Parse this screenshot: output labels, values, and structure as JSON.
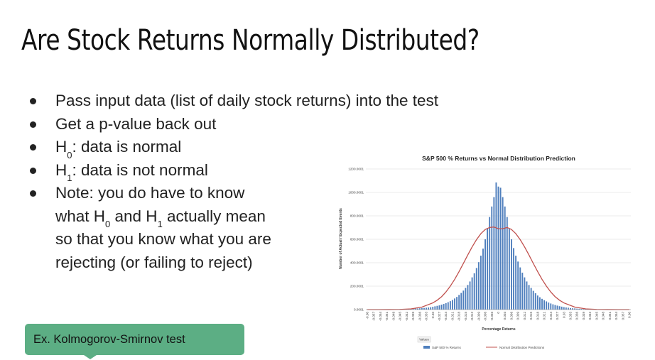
{
  "slide": {
    "title": "Are Stock Returns Normally Distributed?",
    "bullets": [
      {
        "text": "Pass input data (list of daily stock returns) into the test"
      },
      {
        "text": "Get a p-value back out"
      },
      {
        "pre": "H",
        "sub": "0",
        "post": ": data is normal"
      },
      {
        "pre": "H",
        "sub": "1",
        "post": ": data is not normal"
      },
      {
        "note_line1": "Note: you do have to know",
        "note_line2_a": "what H",
        "note_line2_sub0": "0",
        "note_line2_b": " and H",
        "note_line2_sub1": "1",
        "note_line2_c": " actually mean",
        "note_line3": "so that you know what you are",
        "note_line4": "rejecting (or failing to reject)"
      }
    ],
    "callout": "Ex. Kolmogorov-Smirnov test",
    "callout_color": "#5cae84"
  },
  "chart_data": {
    "type": "bar",
    "title": "S&P 500 % Returns vs  Normal Distribution Prediction",
    "xlabel": "Percentage Returns",
    "ylabel": "Number of Actual / Expected Events",
    "y_ticks": [
      "0.0001",
      "200.0001",
      "400.0001",
      "600.0001",
      "800.0001",
      "1000.0001",
      "1200.0001"
    ],
    "ylim": [
      0,
      1200
    ],
    "x_ticks": [
      "-0.06",
      "-0.057",
      "-0.054",
      "-0.051",
      "-0.048",
      "-0.045",
      "-0.042",
      "-0.039",
      "-0.036",
      "-0.033",
      "-0.03",
      "-0.027",
      "-0.024",
      "-0.021",
      "-0.018",
      "-0.015",
      "-0.012",
      "-0.009",
      "-0.006",
      "-0.003",
      "0",
      "0.003",
      "0.006",
      "0.009",
      "0.012",
      "0.015",
      "0.018",
      "0.021",
      "0.024",
      "0.027",
      "0.03",
      "0.033",
      "0.036",
      "0.039",
      "0.042",
      "0.045",
      "0.048",
      "0.051",
      "0.054",
      "0.057",
      "0.06"
    ],
    "xlim": [
      -0.06,
      0.06
    ],
    "legend_header": "Values",
    "series": [
      {
        "name": "S&P 500 % Returns",
        "kind": "bar",
        "color": "#4f7fbd",
        "x": [
          -0.06,
          -0.059,
          -0.058,
          -0.057,
          -0.056,
          -0.055,
          -0.054,
          -0.053,
          -0.052,
          -0.051,
          -0.05,
          -0.049,
          -0.048,
          -0.047,
          -0.046,
          -0.045,
          -0.044,
          -0.043,
          -0.042,
          -0.041,
          -0.04,
          -0.039,
          -0.038,
          -0.037,
          -0.036,
          -0.035,
          -0.034,
          -0.033,
          -0.032,
          -0.031,
          -0.03,
          -0.029,
          -0.028,
          -0.027,
          -0.026,
          -0.025,
          -0.024,
          -0.023,
          -0.022,
          -0.021,
          -0.02,
          -0.019,
          -0.018,
          -0.017,
          -0.016,
          -0.015,
          -0.014,
          -0.013,
          -0.012,
          -0.011,
          -0.01,
          -0.009,
          -0.008,
          -0.007,
          -0.006,
          -0.005,
          -0.004,
          -0.003,
          -0.002,
          -0.001,
          0,
          0.001,
          0.002,
          0.003,
          0.004,
          0.005,
          0.006,
          0.007,
          0.008,
          0.009,
          0.01,
          0.011,
          0.012,
          0.013,
          0.014,
          0.015,
          0.016,
          0.017,
          0.018,
          0.019,
          0.02,
          0.021,
          0.022,
          0.023,
          0.024,
          0.025,
          0.026,
          0.027,
          0.028,
          0.029,
          0.03,
          0.031,
          0.032,
          0.033,
          0.034,
          0.035,
          0.036,
          0.037,
          0.038,
          0.039,
          0.04,
          0.041,
          0.042,
          0.043,
          0.044,
          0.045,
          0.046,
          0.047,
          0.048,
          0.049,
          0.05,
          0.051,
          0.052,
          0.053,
          0.054,
          0.055,
          0.056,
          0.057,
          0.058,
          0.059,
          0.06
        ],
        "values": [
          0,
          0,
          1,
          0,
          0,
          1,
          1,
          0,
          1,
          2,
          1,
          2,
          3,
          2,
          3,
          4,
          3,
          5,
          4,
          6,
          7,
          7,
          9,
          9,
          11,
          13,
          14,
          16,
          18,
          20,
          24,
          28,
          32,
          36,
          42,
          48,
          55,
          63,
          72,
          82,
          95,
          108,
          125,
          142,
          162,
          185,
          210,
          240,
          275,
          310,
          355,
          405,
          460,
          520,
          600,
          690,
          790,
          880,
          960,
          1085,
          1050,
          1040,
          960,
          880,
          790,
          690,
          600,
          525,
          460,
          410,
          360,
          315,
          275,
          240,
          210,
          185,
          160,
          140,
          120,
          105,
          92,
          80,
          70,
          60,
          52,
          45,
          39,
          34,
          29,
          25,
          21,
          18,
          16,
          13,
          11,
          10,
          8,
          7,
          6,
          5,
          4,
          4,
          3,
          3,
          2,
          2,
          2,
          1,
          1,
          1,
          1,
          1,
          0,
          0,
          0,
          0,
          0,
          0,
          0,
          0,
          0
        ]
      },
      {
        "name": "Normal Distribution Predictions",
        "kind": "line",
        "color": "#c0504d",
        "x": [
          -0.06,
          -0.055,
          -0.05,
          -0.045,
          -0.04,
          -0.035,
          -0.03,
          -0.028,
          -0.026,
          -0.024,
          -0.022,
          -0.02,
          -0.018,
          -0.016,
          -0.014,
          -0.012,
          -0.01,
          -0.008,
          -0.006,
          -0.004,
          -0.002,
          0,
          0.002,
          0.004,
          0.006,
          0.008,
          0.01,
          0.012,
          0.014,
          0.016,
          0.018,
          0.02,
          0.022,
          0.024,
          0.026,
          0.028,
          0.03,
          0.035,
          0.04,
          0.045,
          0.05,
          0.055,
          0.06
        ],
        "values": [
          0,
          0,
          0.3,
          1.5,
          6,
          21,
          57,
          80,
          110,
          150,
          200,
          258,
          324,
          394,
          466,
          535,
          597,
          648,
          684,
          701,
          705,
          690,
          690,
          701,
          684,
          648,
          597,
          535,
          466,
          394,
          324,
          258,
          200,
          150,
          110,
          80,
          57,
          21,
          6,
          1.5,
          0.3,
          0,
          0
        ]
      }
    ],
    "grid": true,
    "legend_placement": "bottom"
  }
}
